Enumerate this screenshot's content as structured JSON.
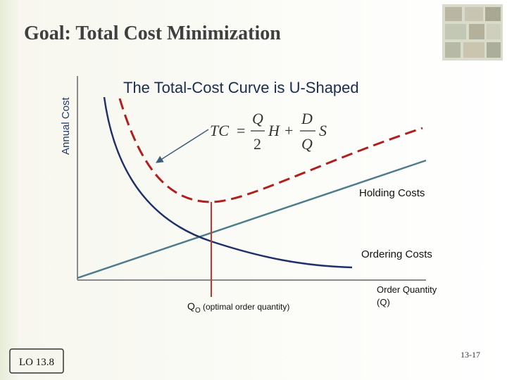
{
  "title": "Goal: Total Cost Minimization",
  "y_axis_label": "Annual Cost",
  "heading": "The Total-Cost Curve is U-Shaped",
  "formula": {
    "lhs": "TC",
    "equals": "=",
    "num1": "Q",
    "den1": "2",
    "var1": "H",
    "plus": "+",
    "num2": "D",
    "den2": "Q",
    "var2": "S"
  },
  "curve_labels": {
    "holding": "Holding Costs",
    "ordering": "Ordering Costs"
  },
  "optimal": {
    "symbol": "Q",
    "subscript": "O",
    "note": "(optimal order quantity)"
  },
  "x_axis_label": {
    "line1": "Order Quantity",
    "line2": "(Q)"
  },
  "footer": {
    "objective": "LO 13.8",
    "page": "13-17"
  }
}
